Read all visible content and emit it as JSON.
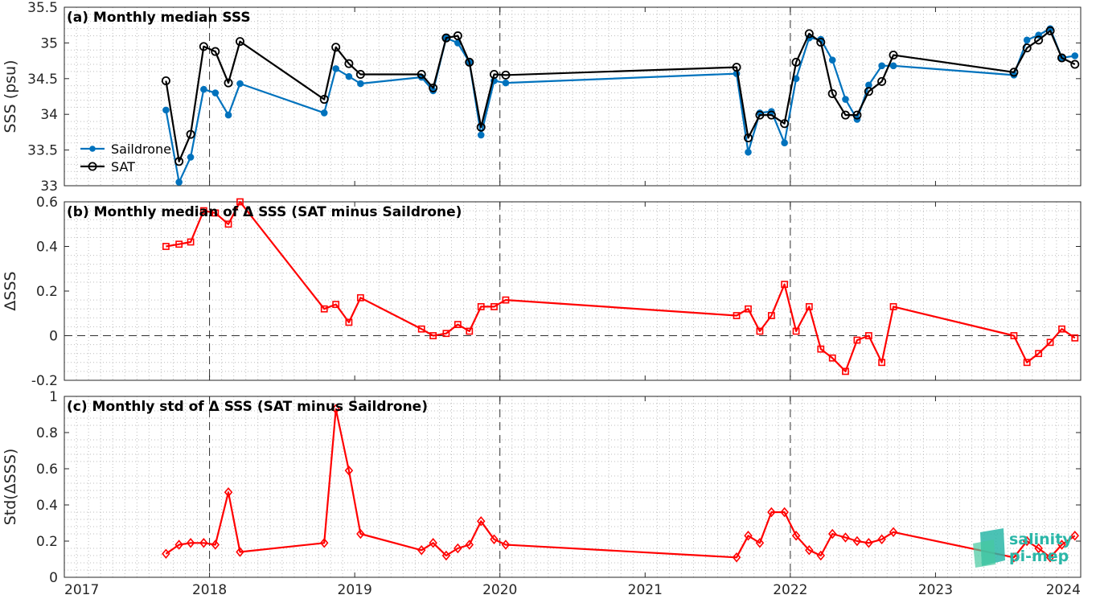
{
  "colors": {
    "saildrone": "#0072BD",
    "sat": "#000000",
    "delta": "#ff0000",
    "logo": "#2bb7a8"
  },
  "logo": {
    "line1": "salinity",
    "line2": "pi-mep"
  },
  "chart_data": [
    {
      "type": "line",
      "title": "(a) Monthly median SSS",
      "ylabel": "SSS (psu)",
      "ylim": [
        33,
        35.5
      ],
      "yticks": [
        33,
        33.5,
        34,
        34.5,
        35,
        35.5
      ],
      "ytick_labels": [
        "33",
        "33.5",
        "34",
        "34.5",
        "35",
        "35.5"
      ],
      "legend": "left",
      "series": [
        {
          "name": "Saildrone",
          "marker": "dot",
          "color": "#0072BD",
          "x": [
            2017.7,
            2017.79,
            2017.87,
            2017.96,
            2018.04,
            2018.13,
            2018.21,
            2018.79,
            2018.87,
            2018.96,
            2019.04,
            2019.46,
            2019.54,
            2019.63,
            2019.71,
            2019.79,
            2019.87,
            2019.96,
            2020.04,
            2021.63,
            2021.71,
            2021.79,
            2021.87,
            2021.96,
            2022.04,
            2022.13,
            2022.21,
            2022.29,
            2022.38,
            2022.46,
            2022.54,
            2022.63,
            2022.71,
            2023.54,
            2023.63,
            2023.71,
            2023.79,
            2023.87,
            2023.96
          ],
          "y": [
            34.06,
            33.05,
            33.4,
            34.35,
            34.3,
            33.99,
            34.43,
            34.02,
            34.64,
            34.53,
            34.43,
            34.52,
            34.33,
            35.07,
            35,
            34.73,
            33.71,
            34.47,
            34.44,
            34.57,
            33.47,
            34.02,
            34.04,
            33.6,
            34.5,
            35.07,
            35.05,
            34.76,
            34.21,
            33.93,
            34.41,
            34.68,
            34.68,
            34.55,
            35.04,
            35.11,
            35.2,
            34.79,
            34.82
          ]
        },
        {
          "name": "SAT",
          "marker": "circle",
          "color": "#000000",
          "x": [
            2017.7,
            2017.79,
            2017.87,
            2017.96,
            2018.04,
            2018.13,
            2018.21,
            2018.79,
            2018.87,
            2018.96,
            2019.04,
            2019.46,
            2019.54,
            2019.63,
            2019.71,
            2019.79,
            2019.87,
            2019.96,
            2020.04,
            2021.63,
            2021.71,
            2021.79,
            2021.87,
            2021.96,
            2022.04,
            2022.13,
            2022.21,
            2022.29,
            2022.38,
            2022.46,
            2022.54,
            2022.63,
            2022.71,
            2023.54,
            2023.63,
            2023.71,
            2023.79,
            2023.87,
            2023.96
          ],
          "y": [
            34.47,
            33.34,
            33.72,
            34.95,
            34.88,
            34.44,
            35.02,
            34.21,
            34.94,
            34.71,
            34.56,
            34.56,
            34.37,
            35.07,
            35.1,
            34.73,
            33.82,
            34.56,
            34.55,
            34.66,
            33.67,
            33.99,
            33.99,
            33.87,
            34.73,
            35.13,
            35.01,
            34.29,
            33.99,
            33.99,
            34.32,
            34.46,
            34.83,
            34.59,
            34.93,
            35.04,
            35.17,
            34.79,
            34.7
          ]
        }
      ]
    },
    {
      "type": "line",
      "title": "(b) Monthly median of Δ SSS (SAT minus Saildrone)",
      "ylabel": "ΔSSS",
      "ylim": [
        -0.2,
        0.6
      ],
      "yticks": [
        -0.2,
        0,
        0.2,
        0.4,
        0.6
      ],
      "ytick_labels": [
        "-0.2",
        "0",
        "0.2",
        "0.4",
        "0.6"
      ],
      "zero_line": true,
      "series": [
        {
          "marker": "square",
          "color": "#ff0000",
          "x": [
            2017.7,
            2017.79,
            2017.87,
            2017.96,
            2018.04,
            2018.13,
            2018.21,
            2018.79,
            2018.87,
            2018.96,
            2019.04,
            2019.46,
            2019.54,
            2019.63,
            2019.71,
            2019.79,
            2019.87,
            2019.96,
            2020.04,
            2021.63,
            2021.71,
            2021.79,
            2021.87,
            2021.96,
            2022.04,
            2022.13,
            2022.21,
            2022.29,
            2022.38,
            2022.46,
            2022.54,
            2022.63,
            2022.71,
            2023.54,
            2023.63,
            2023.71,
            2023.79,
            2023.87,
            2023.96
          ],
          "y": [
            0.4,
            0.41,
            0.42,
            0.56,
            0.55,
            0.5,
            0.6,
            0.12,
            0.14,
            0.06,
            0.17,
            0.03,
            0.0,
            0.01,
            0.05,
            0.02,
            0.13,
            0.13,
            0.16,
            0.09,
            0.12,
            0.02,
            0.09,
            0.23,
            0.02,
            0.13,
            -0.06,
            -0.1,
            -0.16,
            -0.02,
            0.0,
            -0.12,
            0.13,
            0.0,
            -0.12,
            -0.08,
            -0.03,
            0.03,
            -0.01
          ]
        }
      ]
    },
    {
      "type": "line",
      "title": "(c) Monthly std of Δ SSS (SAT minus Saildrone)",
      "ylabel": "Std(ΔSSS)",
      "ylim": [
        0,
        1
      ],
      "yticks": [
        0,
        0.2,
        0.4,
        0.6,
        0.8,
        1
      ],
      "ytick_labels": [
        "0",
        "0.2",
        "0.4",
        "0.6",
        "0.8",
        "1"
      ],
      "xlim": [
        2017,
        2024
      ],
      "xticks": [
        2017,
        2018,
        2019,
        2020,
        2021,
        2022,
        2023,
        2024
      ],
      "xtick_labels": [
        "2017",
        "2018",
        "2019",
        "2020",
        "2021",
        "2022",
        "2023",
        "2024"
      ],
      "series": [
        {
          "marker": "diamond",
          "color": "#ff0000",
          "x": [
            2017.7,
            2017.79,
            2017.87,
            2017.96,
            2018.04,
            2018.13,
            2018.21,
            2018.79,
            2018.87,
            2018.96,
            2019.04,
            2019.46,
            2019.54,
            2019.63,
            2019.71,
            2019.79,
            2019.87,
            2019.96,
            2020.04,
            2021.63,
            2021.71,
            2021.79,
            2021.87,
            2021.96,
            2022.04,
            2022.13,
            2022.21,
            2022.29,
            2022.38,
            2022.46,
            2022.54,
            2022.63,
            2022.71,
            2023.54,
            2023.63,
            2023.71,
            2023.79,
            2023.87,
            2023.96
          ],
          "y": [
            0.13,
            0.18,
            0.19,
            0.19,
            0.18,
            0.47,
            0.14,
            0.19,
            0.93,
            0.59,
            0.24,
            0.15,
            0.19,
            0.12,
            0.16,
            0.18,
            0.31,
            0.21,
            0.18,
            0.11,
            0.23,
            0.19,
            0.36,
            0.36,
            0.23,
            0.15,
            0.12,
            0.24,
            0.22,
            0.2,
            0.19,
            0.21,
            0.25,
            0.11,
            0.2,
            0.16,
            0.11,
            0.18,
            0.23
          ]
        }
      ]
    }
  ]
}
